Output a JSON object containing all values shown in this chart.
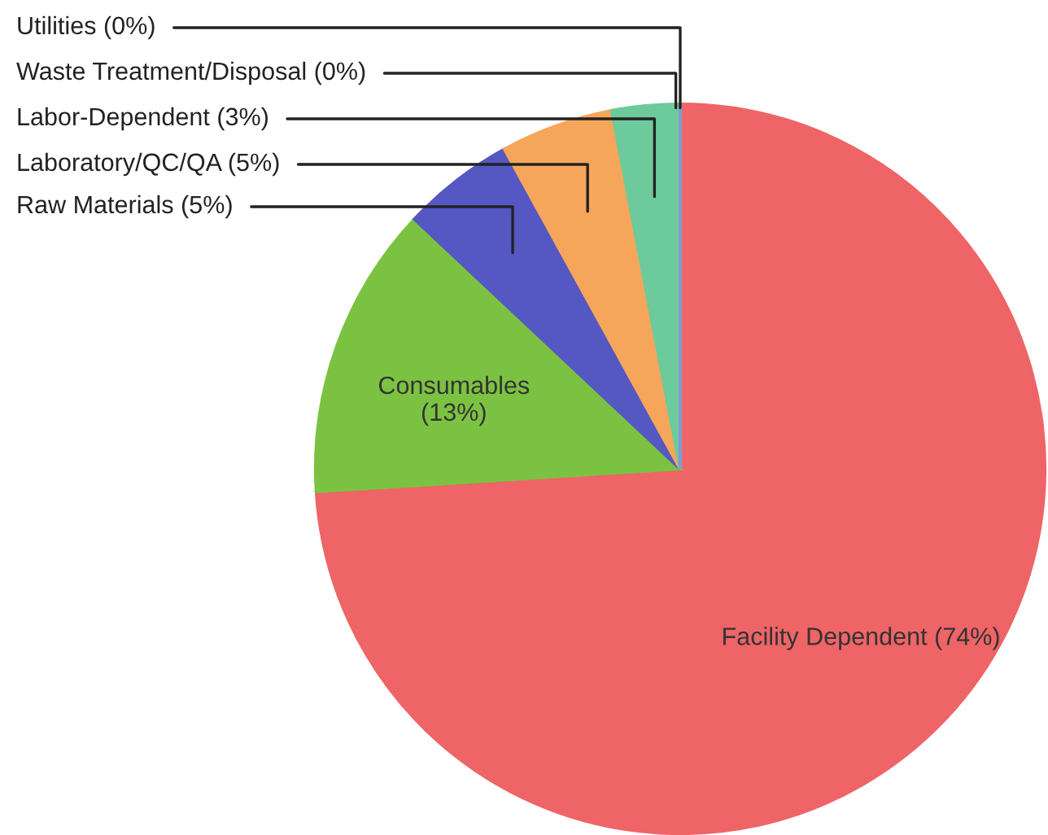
{
  "chart_data": {
    "type": "pie",
    "categories": [
      "Facility Dependent (74%)",
      "Consumables\n(13%)",
      "Raw Materials (5%)",
      "Laboratory/QC/QA (5%)",
      "Labor-Dependent (3%)",
      "Waste Treatment/Disposal (0%)",
      "Utilities (0%)"
    ],
    "values": [
      74,
      13,
      5,
      5,
      3,
      0,
      0
    ],
    "colors": [
      "#ef6466",
      "#7cc242",
      "#5557c2",
      "#f6a65a",
      "#6dca9c",
      "#ece62e",
      "#7f9ad6"
    ],
    "legend": false
  }
}
